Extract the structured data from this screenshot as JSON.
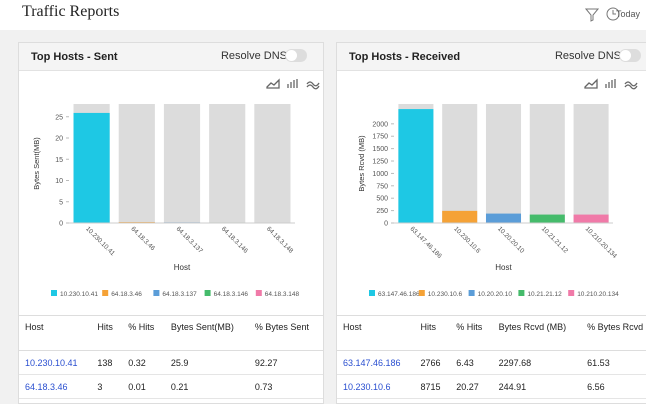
{
  "header": {
    "title": "Traffic Reports",
    "period": "Today"
  },
  "chart_data": [
    {
      "type": "bar",
      "title": "Top Hosts - Sent",
      "resolve_label": "Resolve DNS",
      "y_label": "Bytes Sent(MB)",
      "x_label": "Host",
      "categories": [
        "10.230.10.41",
        "64.18.3.46",
        "64.18.3.137",
        "64.18.3.146",
        "64.18.3.148"
      ],
      "values": [
        25.9,
        0.21,
        0.15,
        0.12,
        0.08
      ],
      "colors": [
        "#1ec8e4",
        "#f5a236",
        "#5b9dd8",
        "#45bb6b",
        "#f07aa8"
      ],
      "ylim": [
        0,
        28
      ],
      "yticks": [
        0,
        5,
        10,
        15,
        20,
        25
      ],
      "table": {
        "columns": [
          "Host",
          "Hits",
          "% Hits",
          "Bytes Sent(MB)",
          "% Bytes Sent"
        ],
        "rows": [
          [
            "10.230.10.41",
            138,
            0.32,
            25.9,
            92.27
          ],
          [
            "64.18.3.46",
            3,
            0.01,
            0.21,
            0.73
          ]
        ]
      }
    },
    {
      "type": "bar",
      "title": "Top Hosts - Received",
      "resolve_label": "Resolve DNS",
      "y_label": "Bytes Rcvd (MB)",
      "x_label": "Host",
      "categories": [
        "63.147.46.186",
        "10.230.10.6",
        "10.20.20.10",
        "10.21.21.12",
        "10.210.20.134"
      ],
      "values": [
        2297.68,
        244.91,
        190,
        170,
        170
      ],
      "colors": [
        "#1ec8e4",
        "#f5a236",
        "#5b9dd8",
        "#45bb6b",
        "#f07aa8"
      ],
      "ylim": [
        0,
        2400
      ],
      "yticks": [
        0,
        250,
        500,
        750,
        1000,
        1250,
        1500,
        1750,
        2000
      ],
      "table": {
        "columns": [
          "Host",
          "Hits",
          "% Hits",
          "Bytes Rcvd (MB)",
          "% Bytes Rcvd"
        ],
        "rows": [
          [
            "63.147.46.186",
            2766,
            6.43,
            2297.68,
            61.53
          ],
          [
            "10.230.10.6",
            8715,
            20.27,
            244.91,
            6.56
          ]
        ]
      }
    }
  ]
}
